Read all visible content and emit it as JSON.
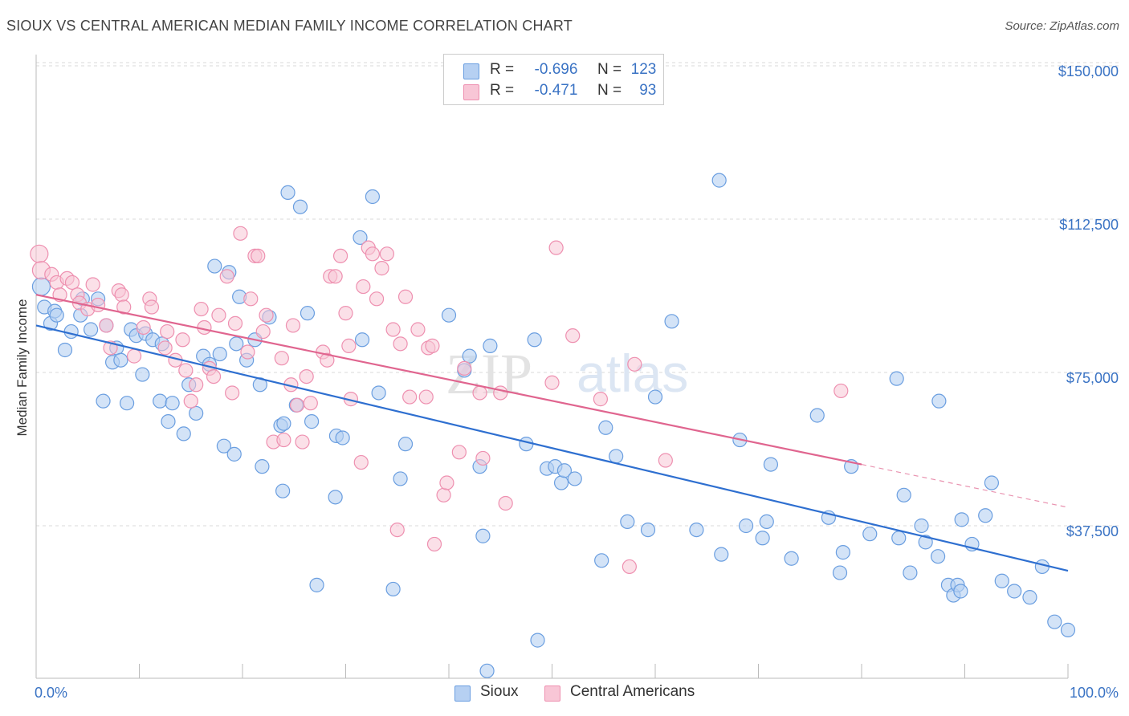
{
  "title": "SIOUX VS CENTRAL AMERICAN MEDIAN FAMILY INCOME CORRELATION CHART",
  "source": "Source: ZipAtlas.com",
  "watermark": {
    "zip": "ZIP",
    "atlas": "atlas"
  },
  "legend": {
    "r_label": "R =",
    "n_label": "N =",
    "series": [
      {
        "r": "-0.696",
        "n": "123"
      },
      {
        "r": "-0.471",
        "n": "93"
      }
    ]
  },
  "bottom_legend": [
    "Sioux",
    "Central Americans"
  ],
  "colors": {
    "sioux_fill": "#b6d0f2",
    "sioux_stroke": "#6a9ee0",
    "sioux_line": "#2e6fd0",
    "ca_fill": "#f8c6d6",
    "ca_stroke": "#ee90b0",
    "ca_line": "#e0658f",
    "axis_label": "#3a73c4",
    "grid": "#d9d9d9"
  },
  "chart_data": {
    "type": "scatter",
    "title": "SIOUX VS CENTRAL AMERICAN MEDIAN FAMILY INCOME CORRELATION CHART",
    "xlabel": "",
    "ylabel": "Median Family Income",
    "xlim": [
      0,
      100
    ],
    "ylim": [
      0,
      155000
    ],
    "x_tick_labels": [
      "0.0%",
      "100.0%"
    ],
    "y_ticks": [
      37500,
      75000,
      112500,
      150000
    ],
    "y_tick_labels": [
      "$37,500",
      "$75,000",
      "$112,500",
      "$150,000"
    ],
    "grid": true,
    "legend_position": "top-center",
    "series": [
      {
        "name": "Sioux",
        "r": -0.696,
        "n": 123,
        "trend": {
          "x": [
            0,
            100
          ],
          "y": [
            86500,
            26500
          ]
        },
        "points": [
          [
            0.5,
            96
          ],
          [
            0.8,
            91
          ],
          [
            1.4,
            87
          ],
          [
            1.8,
            90
          ],
          [
            2,
            89
          ],
          [
            2.8,
            80.5
          ],
          [
            3.4,
            85
          ],
          [
            4.3,
            89
          ],
          [
            4.5,
            93
          ],
          [
            5.3,
            85.5
          ],
          [
            6,
            93
          ],
          [
            6.5,
            68
          ],
          [
            6.8,
            86.5
          ],
          [
            7.4,
            77.5
          ],
          [
            7.8,
            81
          ],
          [
            8.2,
            78
          ],
          [
            8.8,
            67.5
          ],
          [
            9.2,
            85.5
          ],
          [
            9.7,
            84
          ],
          [
            10.3,
            74.5
          ],
          [
            10.6,
            84.5
          ],
          [
            11.3,
            83
          ],
          [
            12,
            68
          ],
          [
            12.2,
            82
          ],
          [
            12.8,
            63
          ],
          [
            13.2,
            67.5
          ],
          [
            14.3,
            60
          ],
          [
            14.8,
            72
          ],
          [
            15.5,
            65
          ],
          [
            16.2,
            79
          ],
          [
            16.8,
            77
          ],
          [
            17.3,
            101
          ],
          [
            17.8,
            79.5
          ],
          [
            18.2,
            57
          ],
          [
            18.7,
            99.5
          ],
          [
            19.2,
            55
          ],
          [
            19.4,
            82
          ],
          [
            19.7,
            93.5
          ],
          [
            20.4,
            78
          ],
          [
            21.2,
            83
          ],
          [
            21.7,
            72
          ],
          [
            21.9,
            52
          ],
          [
            22.6,
            88.5
          ],
          [
            23.7,
            62
          ],
          [
            23.9,
            46
          ],
          [
            24,
            62.5
          ],
          [
            24.4,
            119
          ],
          [
            25.2,
            67
          ],
          [
            25.6,
            115.5
          ],
          [
            26.3,
            89.5
          ],
          [
            26.7,
            63
          ],
          [
            29.1,
            59.5
          ],
          [
            29.7,
            59
          ],
          [
            31.4,
            108
          ],
          [
            31.6,
            83
          ],
          [
            32.6,
            118
          ],
          [
            33.2,
            70
          ],
          [
            34.6,
            22
          ],
          [
            35.3,
            49
          ],
          [
            35.8,
            57.5
          ],
          [
            40,
            89
          ],
          [
            41.5,
            75.5
          ],
          [
            42,
            79
          ],
          [
            43,
            52
          ],
          [
            43.3,
            35
          ],
          [
            44,
            81.5
          ],
          [
            47.5,
            57.5
          ],
          [
            48.3,
            83
          ],
          [
            48.6,
            9.5
          ],
          [
            49.5,
            51.5
          ],
          [
            50.3,
            52
          ],
          [
            50.9,
            48
          ],
          [
            51.2,
            51
          ],
          [
            52.2,
            49
          ],
          [
            54.8,
            29
          ],
          [
            55.2,
            61.5
          ],
          [
            56.2,
            54.5
          ],
          [
            57.3,
            38.5
          ],
          [
            59.3,
            36.5
          ],
          [
            60,
            69
          ],
          [
            61.6,
            87.5
          ],
          [
            64,
            36.5
          ],
          [
            66.2,
            122
          ],
          [
            66.4,
            30.5
          ],
          [
            68.2,
            58.5
          ],
          [
            68.8,
            37.5
          ],
          [
            70.4,
            34.5
          ],
          [
            70.8,
            38.5
          ],
          [
            71.2,
            52.5
          ],
          [
            73.2,
            29.5
          ],
          [
            75.7,
            64.5
          ],
          [
            76.8,
            39.5
          ],
          [
            77.9,
            26
          ],
          [
            78.2,
            31
          ],
          [
            79,
            52
          ],
          [
            80.8,
            35.5
          ],
          [
            83.4,
            73.5
          ],
          [
            83.6,
            34.5
          ],
          [
            84.1,
            45
          ],
          [
            84.7,
            26
          ],
          [
            85.8,
            37.5
          ],
          [
            86.2,
            33.5
          ],
          [
            87.4,
            30
          ],
          [
            87.5,
            68
          ],
          [
            88.4,
            23
          ],
          [
            88.9,
            20.5
          ],
          [
            89.3,
            23
          ],
          [
            89.6,
            21.5
          ],
          [
            89.7,
            39
          ],
          [
            90.7,
            33
          ],
          [
            92,
            40
          ],
          [
            92.6,
            48
          ],
          [
            93.6,
            24
          ],
          [
            94.8,
            21.5
          ],
          [
            96.3,
            20
          ],
          [
            97.5,
            27.5
          ],
          [
            98.7,
            14
          ],
          [
            100,
            12
          ],
          [
            43.7,
            2
          ],
          [
            27.2,
            23
          ],
          [
            29,
            44.5
          ]
        ]
      },
      {
        "name": "Central Americans",
        "r": -0.471,
        "n": 93,
        "trend": {
          "x": [
            0,
            80
          ],
          "y": [
            94000,
            52500
          ]
        },
        "dashed_extension": {
          "x": [
            80,
            100
          ],
          "y": [
            52500,
            42000
          ]
        },
        "points": [
          [
            0.3,
            104
          ],
          [
            0.5,
            100
          ],
          [
            1.5,
            99
          ],
          [
            2,
            97
          ],
          [
            2.3,
            94
          ],
          [
            3,
            98
          ],
          [
            3.5,
            97
          ],
          [
            4,
            94
          ],
          [
            4.2,
            92
          ],
          [
            5,
            90.5
          ],
          [
            5.5,
            96.5
          ],
          [
            6,
            91.5
          ],
          [
            6.8,
            86.5
          ],
          [
            7.2,
            81
          ],
          [
            8,
            95
          ],
          [
            8.3,
            94
          ],
          [
            8.5,
            91
          ],
          [
            9.5,
            79
          ],
          [
            10.4,
            86
          ],
          [
            11,
            93
          ],
          [
            11.2,
            91
          ],
          [
            12.5,
            81
          ],
          [
            12.7,
            85
          ],
          [
            13.5,
            78
          ],
          [
            14.2,
            83
          ],
          [
            14.5,
            75.5
          ],
          [
            15,
            68
          ],
          [
            15.5,
            72
          ],
          [
            16,
            90.5
          ],
          [
            16.3,
            86
          ],
          [
            16.8,
            76
          ],
          [
            17.2,
            74
          ],
          [
            17.7,
            89
          ],
          [
            18.5,
            98.5
          ],
          [
            19,
            70
          ],
          [
            19.3,
            87
          ],
          [
            19.8,
            109
          ],
          [
            20.5,
            80
          ],
          [
            20.8,
            93
          ],
          [
            21.2,
            103.5
          ],
          [
            21.5,
            103.5
          ],
          [
            22,
            85
          ],
          [
            22.3,
            89
          ],
          [
            23,
            58
          ],
          [
            24,
            58.5
          ],
          [
            23.8,
            78.5
          ],
          [
            24.7,
            72
          ],
          [
            24.9,
            86.5
          ],
          [
            25.3,
            67
          ],
          [
            25.8,
            58
          ],
          [
            26.2,
            74
          ],
          [
            26.6,
            67.5
          ],
          [
            27.8,
            80
          ],
          [
            28.2,
            78
          ],
          [
            28.5,
            98.5
          ],
          [
            29,
            98.5
          ],
          [
            29.5,
            103.5
          ],
          [
            30,
            89.5
          ],
          [
            30.3,
            81.5
          ],
          [
            30.5,
            68.5
          ],
          [
            31.5,
            53
          ],
          [
            31.7,
            96
          ],
          [
            32.2,
            105.5
          ],
          [
            32.6,
            104
          ],
          [
            33,
            93
          ],
          [
            33.5,
            100.5
          ],
          [
            34,
            104
          ],
          [
            34.6,
            85.5
          ],
          [
            35,
            36.5
          ],
          [
            35.3,
            82
          ],
          [
            35.8,
            93.5
          ],
          [
            36.2,
            69
          ],
          [
            37,
            85.5
          ],
          [
            37.8,
            69
          ],
          [
            38,
            81
          ],
          [
            38.4,
            81.5
          ],
          [
            38.6,
            33
          ],
          [
            39.5,
            45
          ],
          [
            39.8,
            48
          ],
          [
            41,
            55.5
          ],
          [
            41.5,
            76
          ],
          [
            43,
            70
          ],
          [
            43.3,
            54
          ],
          [
            45,
            70
          ],
          [
            45.5,
            43
          ],
          [
            50,
            72.5
          ],
          [
            50.4,
            105.5
          ],
          [
            52,
            84
          ],
          [
            54.7,
            68.5
          ],
          [
            57.5,
            27.5
          ],
          [
            58,
            77
          ],
          [
            61,
            53.5
          ],
          [
            78,
            70.5
          ]
        ]
      }
    ]
  }
}
